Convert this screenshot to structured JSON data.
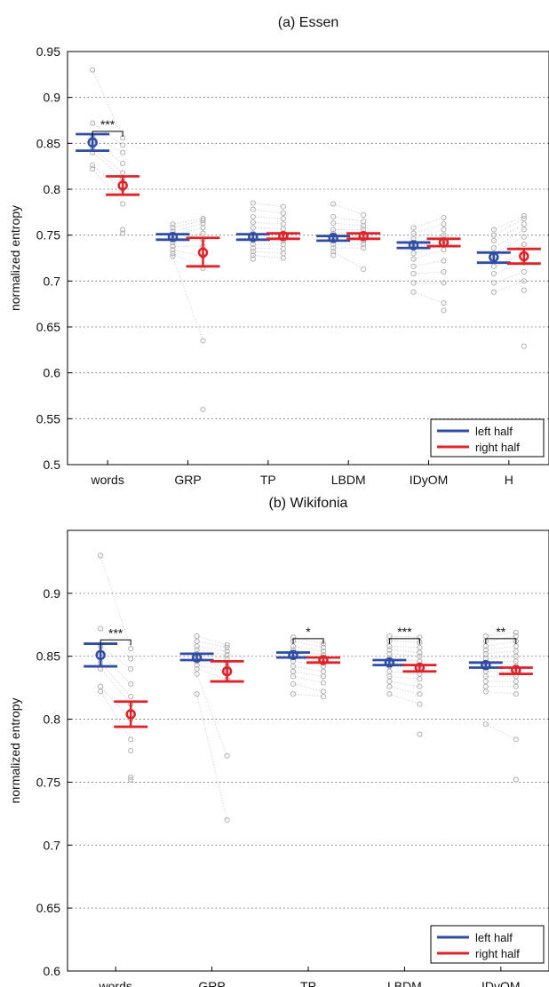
{
  "chart_data": [
    {
      "type": "scatter",
      "title": "(a) Essen",
      "xlabel": "",
      "ylabel": "normalized entropy",
      "categories": [
        "words",
        "GRP",
        "TP",
        "LBDM",
        "IDyOM",
        "H"
      ],
      "ylim": [
        0.5,
        0.95
      ],
      "yticks": [
        "0.5",
        "0.55",
        "0.6",
        "0.65",
        "0.7",
        "0.75",
        "0.8",
        "0.85",
        "0.9",
        "0.95"
      ],
      "grid": "horizontal dotted",
      "legend_position": "bottom-right",
      "series": [
        {
          "name": "left half",
          "color": "#2f4da6",
          "mean": [
            0.851,
            0.748,
            0.748,
            0.747,
            0.739,
            0.726
          ],
          "ci_low": [
            0.842,
            0.745,
            0.745,
            0.744,
            0.736,
            0.72
          ],
          "ci_high": [
            0.86,
            0.751,
            0.751,
            0.749,
            0.742,
            0.731
          ]
        },
        {
          "name": "right half",
          "color": "#e02229",
          "mean": [
            0.804,
            0.731,
            0.749,
            0.749,
            0.742,
            0.727
          ],
          "ci_low": [
            0.794,
            0.716,
            0.746,
            0.746,
            0.738,
            0.719
          ],
          "ci_high": [
            0.814,
            0.747,
            0.752,
            0.752,
            0.746,
            0.735
          ]
        }
      ],
      "individual_points": {
        "color": "#aaaaaa",
        "left": [
          [
            0.93,
            0.872,
            0.858,
            0.852,
            0.845,
            0.84,
            0.826,
            0.822
          ],
          [
            0.762,
            0.758,
            0.754,
            0.75,
            0.746,
            0.742,
            0.738,
            0.734,
            0.73,
            0.727
          ],
          [
            0.785,
            0.778,
            0.77,
            0.764,
            0.758,
            0.752,
            0.748,
            0.744,
            0.74,
            0.736,
            0.732,
            0.728,
            0.724
          ],
          [
            0.784,
            0.77,
            0.763,
            0.756,
            0.752,
            0.748,
            0.744,
            0.74,
            0.736,
            0.732,
            0.728
          ],
          [
            0.758,
            0.752,
            0.746,
            0.741,
            0.736,
            0.73,
            0.724,
            0.716,
            0.708,
            0.698,
            0.688
          ],
          [
            0.756,
            0.75,
            0.744,
            0.736,
            0.73,
            0.724,
            0.716,
            0.708,
            0.698,
            0.688
          ]
        ],
        "right": [
          [
            0.856,
            0.848,
            0.84,
            0.828,
            0.818,
            0.812,
            0.8,
            0.784,
            0.756,
            0.752
          ],
          [
            0.768,
            0.766,
            0.763,
            0.758,
            0.752,
            0.745,
            0.738,
            0.727,
            0.714,
            0.635,
            0.56
          ],
          [
            0.781,
            0.774,
            0.768,
            0.762,
            0.757,
            0.752,
            0.748,
            0.744,
            0.74,
            0.735,
            0.73,
            0.725
          ],
          [
            0.772,
            0.765,
            0.76,
            0.756,
            0.752,
            0.748,
            0.744,
            0.74,
            0.736,
            0.713
          ],
          [
            0.769,
            0.762,
            0.756,
            0.75,
            0.745,
            0.74,
            0.734,
            0.722,
            0.71,
            0.698,
            0.676,
            0.668
          ],
          [
            0.771,
            0.768,
            0.762,
            0.756,
            0.748,
            0.74,
            0.73,
            0.72,
            0.71,
            0.7,
            0.69,
            0.629
          ]
        ]
      },
      "significance": [
        {
          "category": "words",
          "label": "***",
          "y": 0.863
        }
      ]
    },
    {
      "type": "scatter",
      "title": "(b) Wikifonia",
      "xlabel": "",
      "ylabel": "normalized entropy",
      "categories": [
        "words",
        "GRP",
        "TP",
        "LBDM",
        "IDyOM"
      ],
      "ylim": [
        0.6,
        0.95
      ],
      "yticks": [
        "0.6",
        "0.65",
        "0.7",
        "0.75",
        "0.8",
        "0.85",
        "0.9"
      ],
      "grid": "horizontal dotted",
      "legend_position": "bottom-right",
      "series": [
        {
          "name": "left half",
          "color": "#2f4da6",
          "mean": [
            0.851,
            0.849,
            0.851,
            0.845,
            0.843
          ],
          "ci_low": [
            0.842,
            0.847,
            0.849,
            0.843,
            0.841
          ],
          "ci_high": [
            0.86,
            0.852,
            0.853,
            0.847,
            0.845
          ]
        },
        {
          "name": "right half",
          "color": "#e02229",
          "mean": [
            0.804,
            0.838,
            0.847,
            0.841,
            0.839
          ],
          "ci_low": [
            0.794,
            0.83,
            0.845,
            0.838,
            0.836
          ],
          "ci_high": [
            0.814,
            0.846,
            0.849,
            0.843,
            0.841
          ]
        }
      ],
      "individual_points": {
        "color": "#aaaaaa",
        "left": [
          [
            0.93,
            0.872,
            0.858,
            0.852,
            0.845,
            0.84,
            0.826,
            0.822
          ],
          [
            0.866,
            0.862,
            0.858,
            0.855,
            0.852,
            0.849,
            0.846,
            0.843,
            0.84,
            0.836,
            0.82
          ],
          [
            0.865,
            0.862,
            0.858,
            0.855,
            0.852,
            0.849,
            0.846,
            0.842,
            0.838,
            0.834,
            0.828,
            0.82
          ],
          [
            0.866,
            0.862,
            0.858,
            0.855,
            0.852,
            0.848,
            0.845,
            0.842,
            0.838,
            0.834,
            0.83,
            0.826,
            0.82
          ],
          [
            0.866,
            0.862,
            0.858,
            0.855,
            0.852,
            0.848,
            0.845,
            0.842,
            0.838,
            0.834,
            0.83,
            0.826,
            0.822,
            0.796
          ]
        ],
        "right": [
          [
            0.856,
            0.848,
            0.84,
            0.828,
            0.818,
            0.812,
            0.8,
            0.784,
            0.775,
            0.754,
            0.752
          ],
          [
            0.859,
            0.857,
            0.854,
            0.851,
            0.848,
            0.845,
            0.842,
            0.838,
            0.832,
            0.771,
            0.72
          ],
          [
            0.86,
            0.857,
            0.854,
            0.851,
            0.848,
            0.845,
            0.842,
            0.838,
            0.834,
            0.829,
            0.822,
            0.818
          ],
          [
            0.865,
            0.861,
            0.857,
            0.853,
            0.85,
            0.846,
            0.843,
            0.84,
            0.836,
            0.832,
            0.826,
            0.82,
            0.812,
            0.788
          ],
          [
            0.869,
            0.866,
            0.862,
            0.858,
            0.854,
            0.85,
            0.846,
            0.842,
            0.838,
            0.834,
            0.83,
            0.826,
            0.82,
            0.784,
            0.752
          ]
        ]
      },
      "significance": [
        {
          "category": "words",
          "label": "***",
          "y": 0.863
        },
        {
          "category": "TP",
          "label": "*",
          "y": 0.864
        },
        {
          "category": "LBDM",
          "label": "***",
          "y": 0.864
        },
        {
          "category": "IDyOM",
          "label": "**",
          "y": 0.864
        }
      ]
    }
  ]
}
